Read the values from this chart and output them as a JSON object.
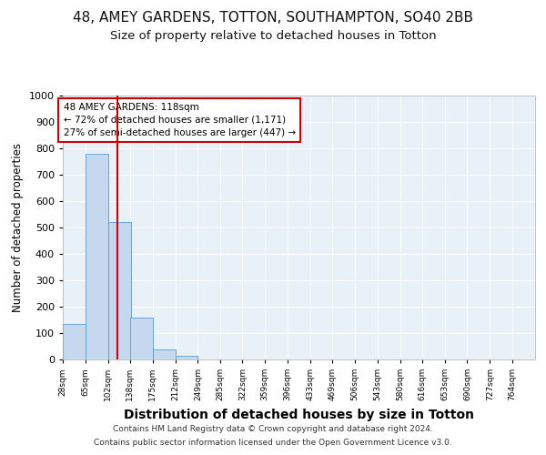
{
  "title1": "48, AMEY GARDENS, TOTTON, SOUTHAMPTON, SO40 2BB",
  "title2": "Size of property relative to detached houses in Totton",
  "xlabel": "Distribution of detached houses by size in Totton",
  "ylabel": "Number of detached properties",
  "bin_labels": [
    "28sqm",
    "65sqm",
    "102sqm",
    "138sqm",
    "175sqm",
    "212sqm",
    "249sqm",
    "285sqm",
    "322sqm",
    "359sqm",
    "396sqm",
    "433sqm",
    "469sqm",
    "506sqm",
    "543sqm",
    "580sqm",
    "616sqm",
    "653sqm",
    "690sqm",
    "727sqm",
    "764sqm"
  ],
  "bin_edges": [
    28,
    65,
    102,
    138,
    175,
    212,
    249,
    285,
    322,
    359,
    396,
    433,
    469,
    506,
    543,
    580,
    616,
    653,
    690,
    727,
    764
  ],
  "bar_heights": [
    133,
    778,
    522,
    157,
    38,
    13,
    0,
    0,
    0,
    0,
    0,
    0,
    0,
    0,
    0,
    0,
    0,
    0,
    0,
    0
  ],
  "bar_color": "#c5d8ed",
  "bar_edgecolor": "#5b9bd5",
  "property_size": 118,
  "red_line_color": "#cc0000",
  "annotation_line1": "48 AMEY GARDENS: 118sqm",
  "annotation_line2": "← 72% of detached houses are smaller (1,171)",
  "annotation_line3": "27% of semi-detached houses are larger (447) →",
  "annotation_box_color": "#ffffff",
  "annotation_box_edgecolor": "#cc0000",
  "footer1": "Contains HM Land Registry data © Crown copyright and database right 2024.",
  "footer2": "Contains public sector information licensed under the Open Government Licence v3.0.",
  "ylim": [
    0,
    1000
  ],
  "yticks": [
    0,
    100,
    200,
    300,
    400,
    500,
    600,
    700,
    800,
    900,
    1000
  ],
  "bg_color": "#e8f0f8",
  "fig_bg": "#ffffff",
  "title1_fontsize": 11,
  "title2_fontsize": 9.5,
  "xlabel_fontsize": 10,
  "ylabel_fontsize": 8.5
}
